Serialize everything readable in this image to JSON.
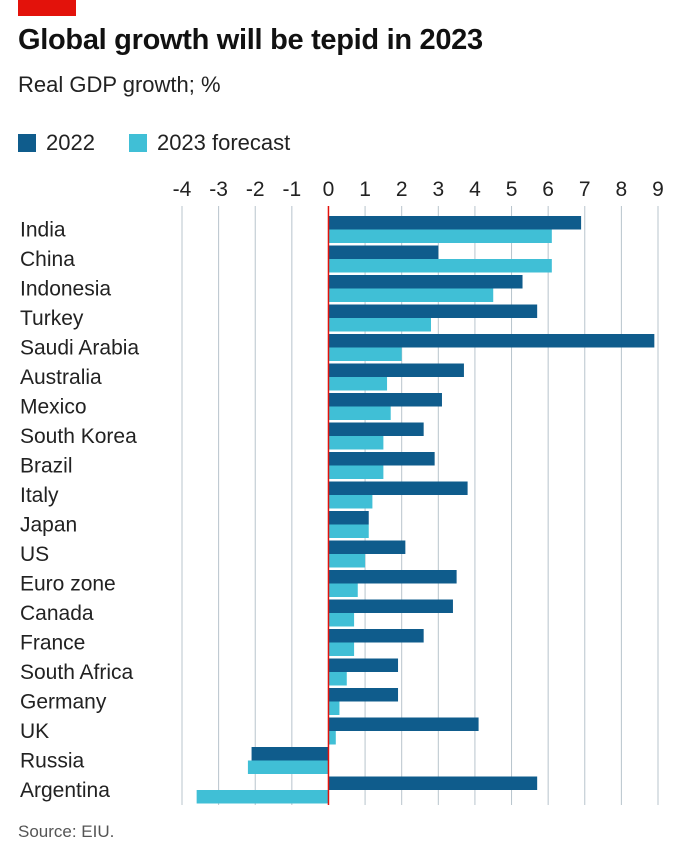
{
  "title": "Global growth will be tepid in 2023",
  "subtitle": "Real GDP growth; %",
  "source": "Source: EIU.",
  "colors": {
    "series_2022": "#0f5c8c",
    "series_2023": "#40bfd6",
    "zero_line": "#e3120b",
    "grid": "#b8c4cc",
    "brand": "#e3120b"
  },
  "chart_data": {
    "type": "bar",
    "orientation": "horizontal",
    "xlim": [
      -4,
      9
    ],
    "ticks": [
      "-4",
      "-3",
      "-2",
      "-1",
      "0",
      "1",
      "2",
      "3",
      "4",
      "5",
      "6",
      "7",
      "8",
      "9"
    ],
    "tick_values": [
      -4,
      -3,
      -2,
      -1,
      0,
      1,
      2,
      3,
      4,
      5,
      6,
      7,
      8,
      9
    ],
    "grid": true,
    "legend_position": "top-left",
    "categories": [
      "India",
      "China",
      "Indonesia",
      "Turkey",
      "Saudi Arabia",
      "Australia",
      "Mexico",
      "South Korea",
      "Brazil",
      "Italy",
      "Japan",
      "US",
      "Euro zone",
      "Canada",
      "France",
      "South Africa",
      "Germany",
      "UK",
      "Russia",
      "Argentina"
    ],
    "series": [
      {
        "name": "2022",
        "values": [
          6.9,
          3.0,
          5.3,
          5.7,
          8.9,
          3.7,
          3.1,
          2.6,
          2.9,
          3.8,
          1.1,
          2.1,
          3.5,
          3.4,
          2.6,
          1.9,
          1.9,
          4.1,
          -2.1,
          5.7
        ]
      },
      {
        "name": "2023 forecast",
        "values": [
          6.1,
          6.1,
          4.5,
          2.8,
          2.0,
          1.6,
          1.7,
          1.5,
          1.5,
          1.2,
          1.1,
          1.0,
          0.8,
          0.7,
          0.7,
          0.5,
          0.3,
          0.2,
          -2.2,
          -3.6
        ]
      }
    ]
  }
}
